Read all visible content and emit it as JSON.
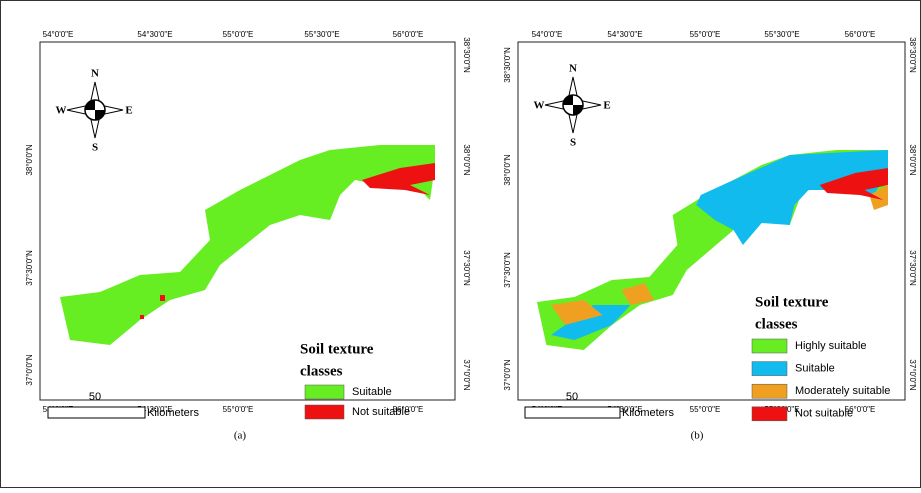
{
  "panels": [
    {
      "label": "(a)",
      "top_labels": [
        "54°0'0\"E",
        "54°30'0\"E",
        "55°0'0\"E",
        "55°30'0\"E",
        "56°0'0\"E"
      ],
      "bottom_labels": [
        "54°0'0\"E",
        "54°30'0\"E",
        "55°0'0\"E",
        "55°30'0\"E",
        "56°0'0\"E"
      ],
      "left_labels": [
        "38°0'0\"N",
        "37°30'0\"N",
        "37°0'0\"N"
      ],
      "right_labels": [
        "38°30'0\"N",
        "38°0'0\"N",
        "37°30'0\"N",
        "37°0'0\"N"
      ],
      "compass": {
        "n": "N",
        "s": "S",
        "e": "E",
        "w": "W"
      },
      "legend": {
        "title": "Soil texture",
        "subtitle": "classes",
        "items": [
          {
            "label": "Suitable",
            "color": "#66ee22"
          },
          {
            "label": "Not suitable",
            "color": "#ee1111"
          }
        ]
      },
      "scale": {
        "value": "50",
        "unit": "Kilometers"
      }
    },
    {
      "label": "(b)",
      "top_labels": [
        "54°0'0\"E",
        "54°30'0\"E",
        "55°0'0\"E",
        "55°30'0\"E",
        "56°0'0\"E"
      ],
      "bottom_labels": [
        "54°0'0\"E",
        "54°30'0\"E",
        "55°0'0\"E",
        "55°30'0\"E",
        "56°0'0\"E"
      ],
      "left_labels": [
        "38°30'0\"N",
        "38°0'0\"N",
        "37°30'0\"N",
        "37°0'0\"N"
      ],
      "right_labels": [
        "38°30'0\"N",
        "38°0'0\"N",
        "37°30'0\"N",
        "37°0'0\"N"
      ],
      "compass": {
        "n": "N",
        "s": "S",
        "e": "E",
        "w": "W"
      },
      "legend": {
        "title": "Soil texture",
        "subtitle": "classes",
        "items": [
          {
            "label": "Highly suitable",
            "color": "#66ee22"
          },
          {
            "label": "Suitable",
            "color": "#11bbee"
          },
          {
            "label": "Moderately suitable",
            "color": "#f0a020"
          },
          {
            "label": "Not suitable",
            "color": "#ee1111"
          }
        ]
      },
      "scale": {
        "value": "50",
        "unit": "Kilometers"
      }
    }
  ]
}
